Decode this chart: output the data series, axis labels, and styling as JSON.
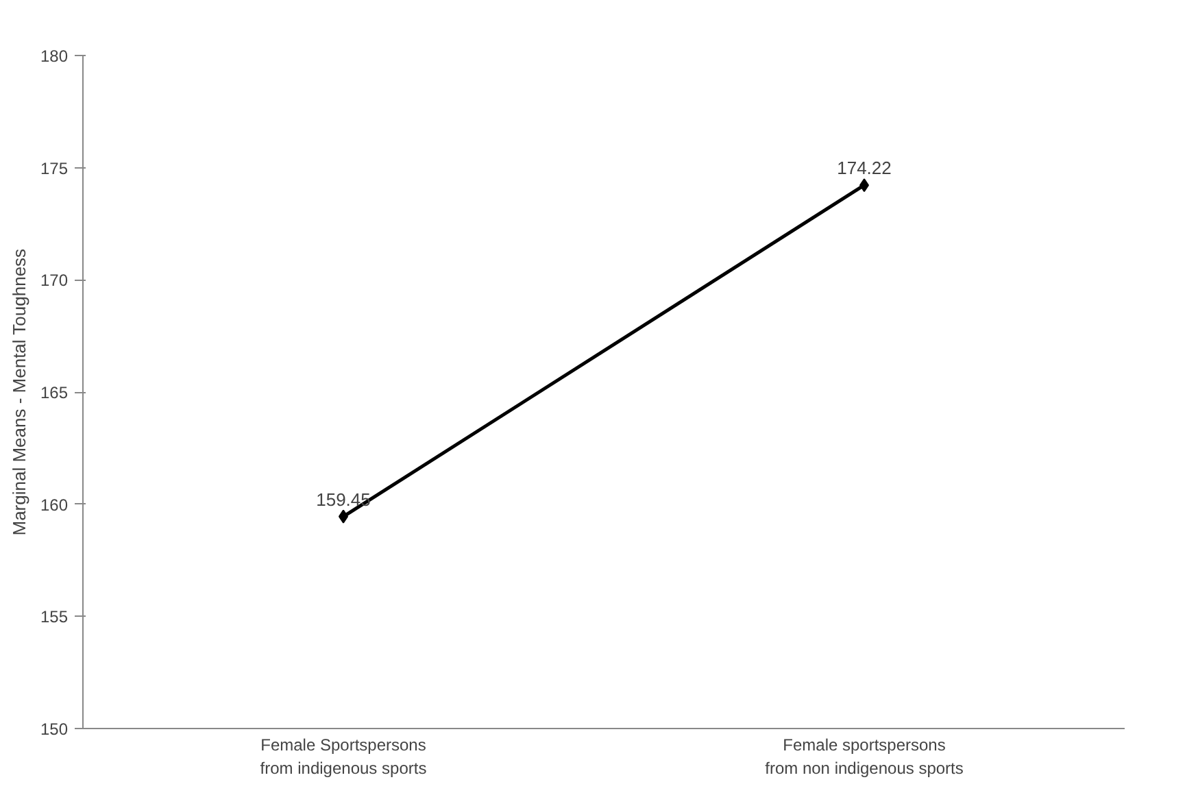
{
  "chart_data": {
    "type": "line",
    "ylabel": "Marginal Means - Mental Toughness",
    "categories": [
      "Female Sportspersons\nfrom indigenous sports",
      "Female sportspersons\nfrom non indigenous sports"
    ],
    "series": [
      {
        "color": "#000000",
        "values": [
          159.45,
          174.22
        ]
      }
    ],
    "ylim": [
      150,
      180
    ],
    "yticks": [
      150,
      155,
      160,
      165,
      170,
      175,
      180
    ],
    "grid": false,
    "marker": "diamond",
    "line_style": "solid",
    "data_labels": true
  }
}
